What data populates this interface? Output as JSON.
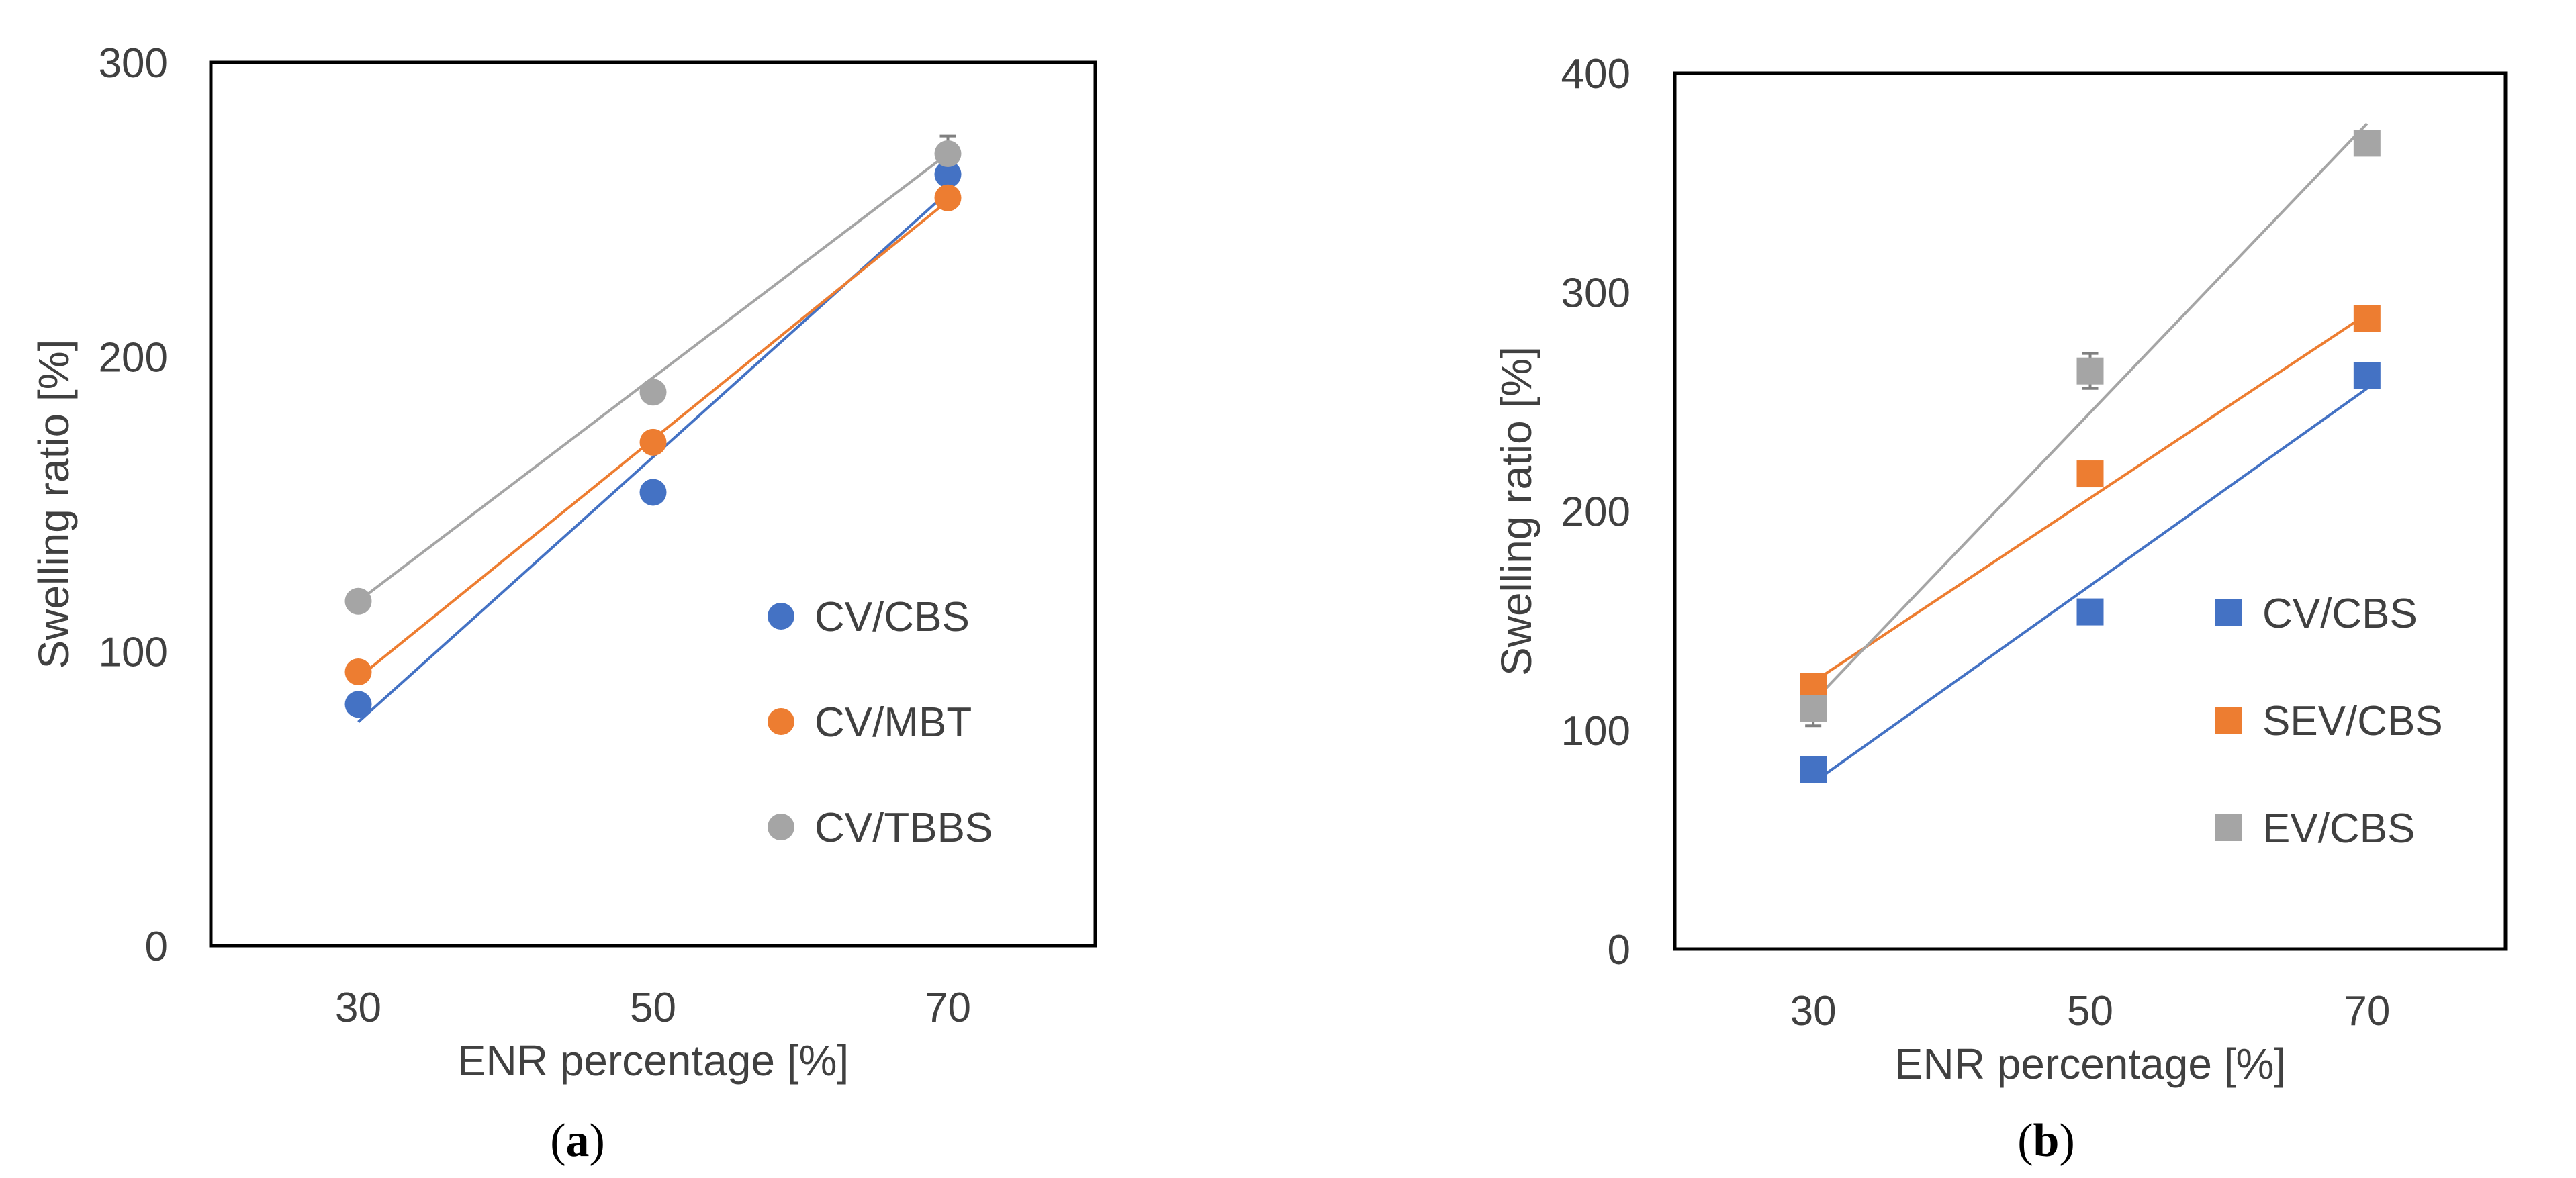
{
  "chart_data": [
    {
      "id": "a",
      "type": "scatter",
      "panel_label": "(a)",
      "panel_letter": "a",
      "xlabel": "ENR percentage [%]",
      "ylabel": "Swelling ratio [%]",
      "x_categories": [
        30,
        50,
        70
      ],
      "xlim": [
        20,
        80
      ],
      "ylim": [
        0,
        300
      ],
      "yticks": [
        0,
        100,
        200,
        300
      ],
      "marker": "circle",
      "legend_position": "right",
      "series": [
        {
          "name": "CV/CBS",
          "color": "#4472C4",
          "values": [
            82,
            154,
            262
          ],
          "trend": [
            76,
            166,
            256
          ],
          "error": [
            0,
            0,
            0
          ]
        },
        {
          "name": "CV/MBT",
          "color": "#ED7D31",
          "values": [
            93,
            171,
            254
          ],
          "trend": [
            91,
            172,
            253
          ],
          "error": [
            0,
            0,
            0
          ]
        },
        {
          "name": "CV/TBBS",
          "color": "#A5A5A5",
          "values": [
            117,
            188,
            269
          ],
          "trend": [
            117,
            193,
            269
          ],
          "error": [
            0,
            0,
            6
          ]
        }
      ]
    },
    {
      "id": "b",
      "type": "scatter",
      "panel_label": "(b)",
      "panel_letter": "b",
      "xlabel": "ENR percentage [%]",
      "ylabel": "Swelling ratio [%]",
      "x_categories": [
        30,
        50,
        70
      ],
      "xlim": [
        20,
        80
      ],
      "ylim": [
        0,
        400
      ],
      "yticks": [
        0,
        100,
        200,
        300,
        400
      ],
      "marker": "square",
      "legend_position": "right",
      "series": [
        {
          "name": "CV/CBS",
          "color": "#4472C4",
          "values": [
            82,
            154,
            262
          ],
          "trend": [
            76,
            166,
            256
          ],
          "error": [
            0,
            0,
            0
          ]
        },
        {
          "name": "SEV/CBS",
          "color": "#ED7D31",
          "values": [
            120,
            217,
            288
          ],
          "trend": [
            122,
            206,
            290
          ],
          "error": [
            0,
            0,
            0
          ]
        },
        {
          "name": "EV/CBS",
          "color": "#A5A5A5",
          "values": [
            110,
            264,
            368
          ],
          "trend": [
            113,
            245,
            377
          ],
          "error": [
            8,
            8,
            0
          ]
        }
      ]
    }
  ]
}
